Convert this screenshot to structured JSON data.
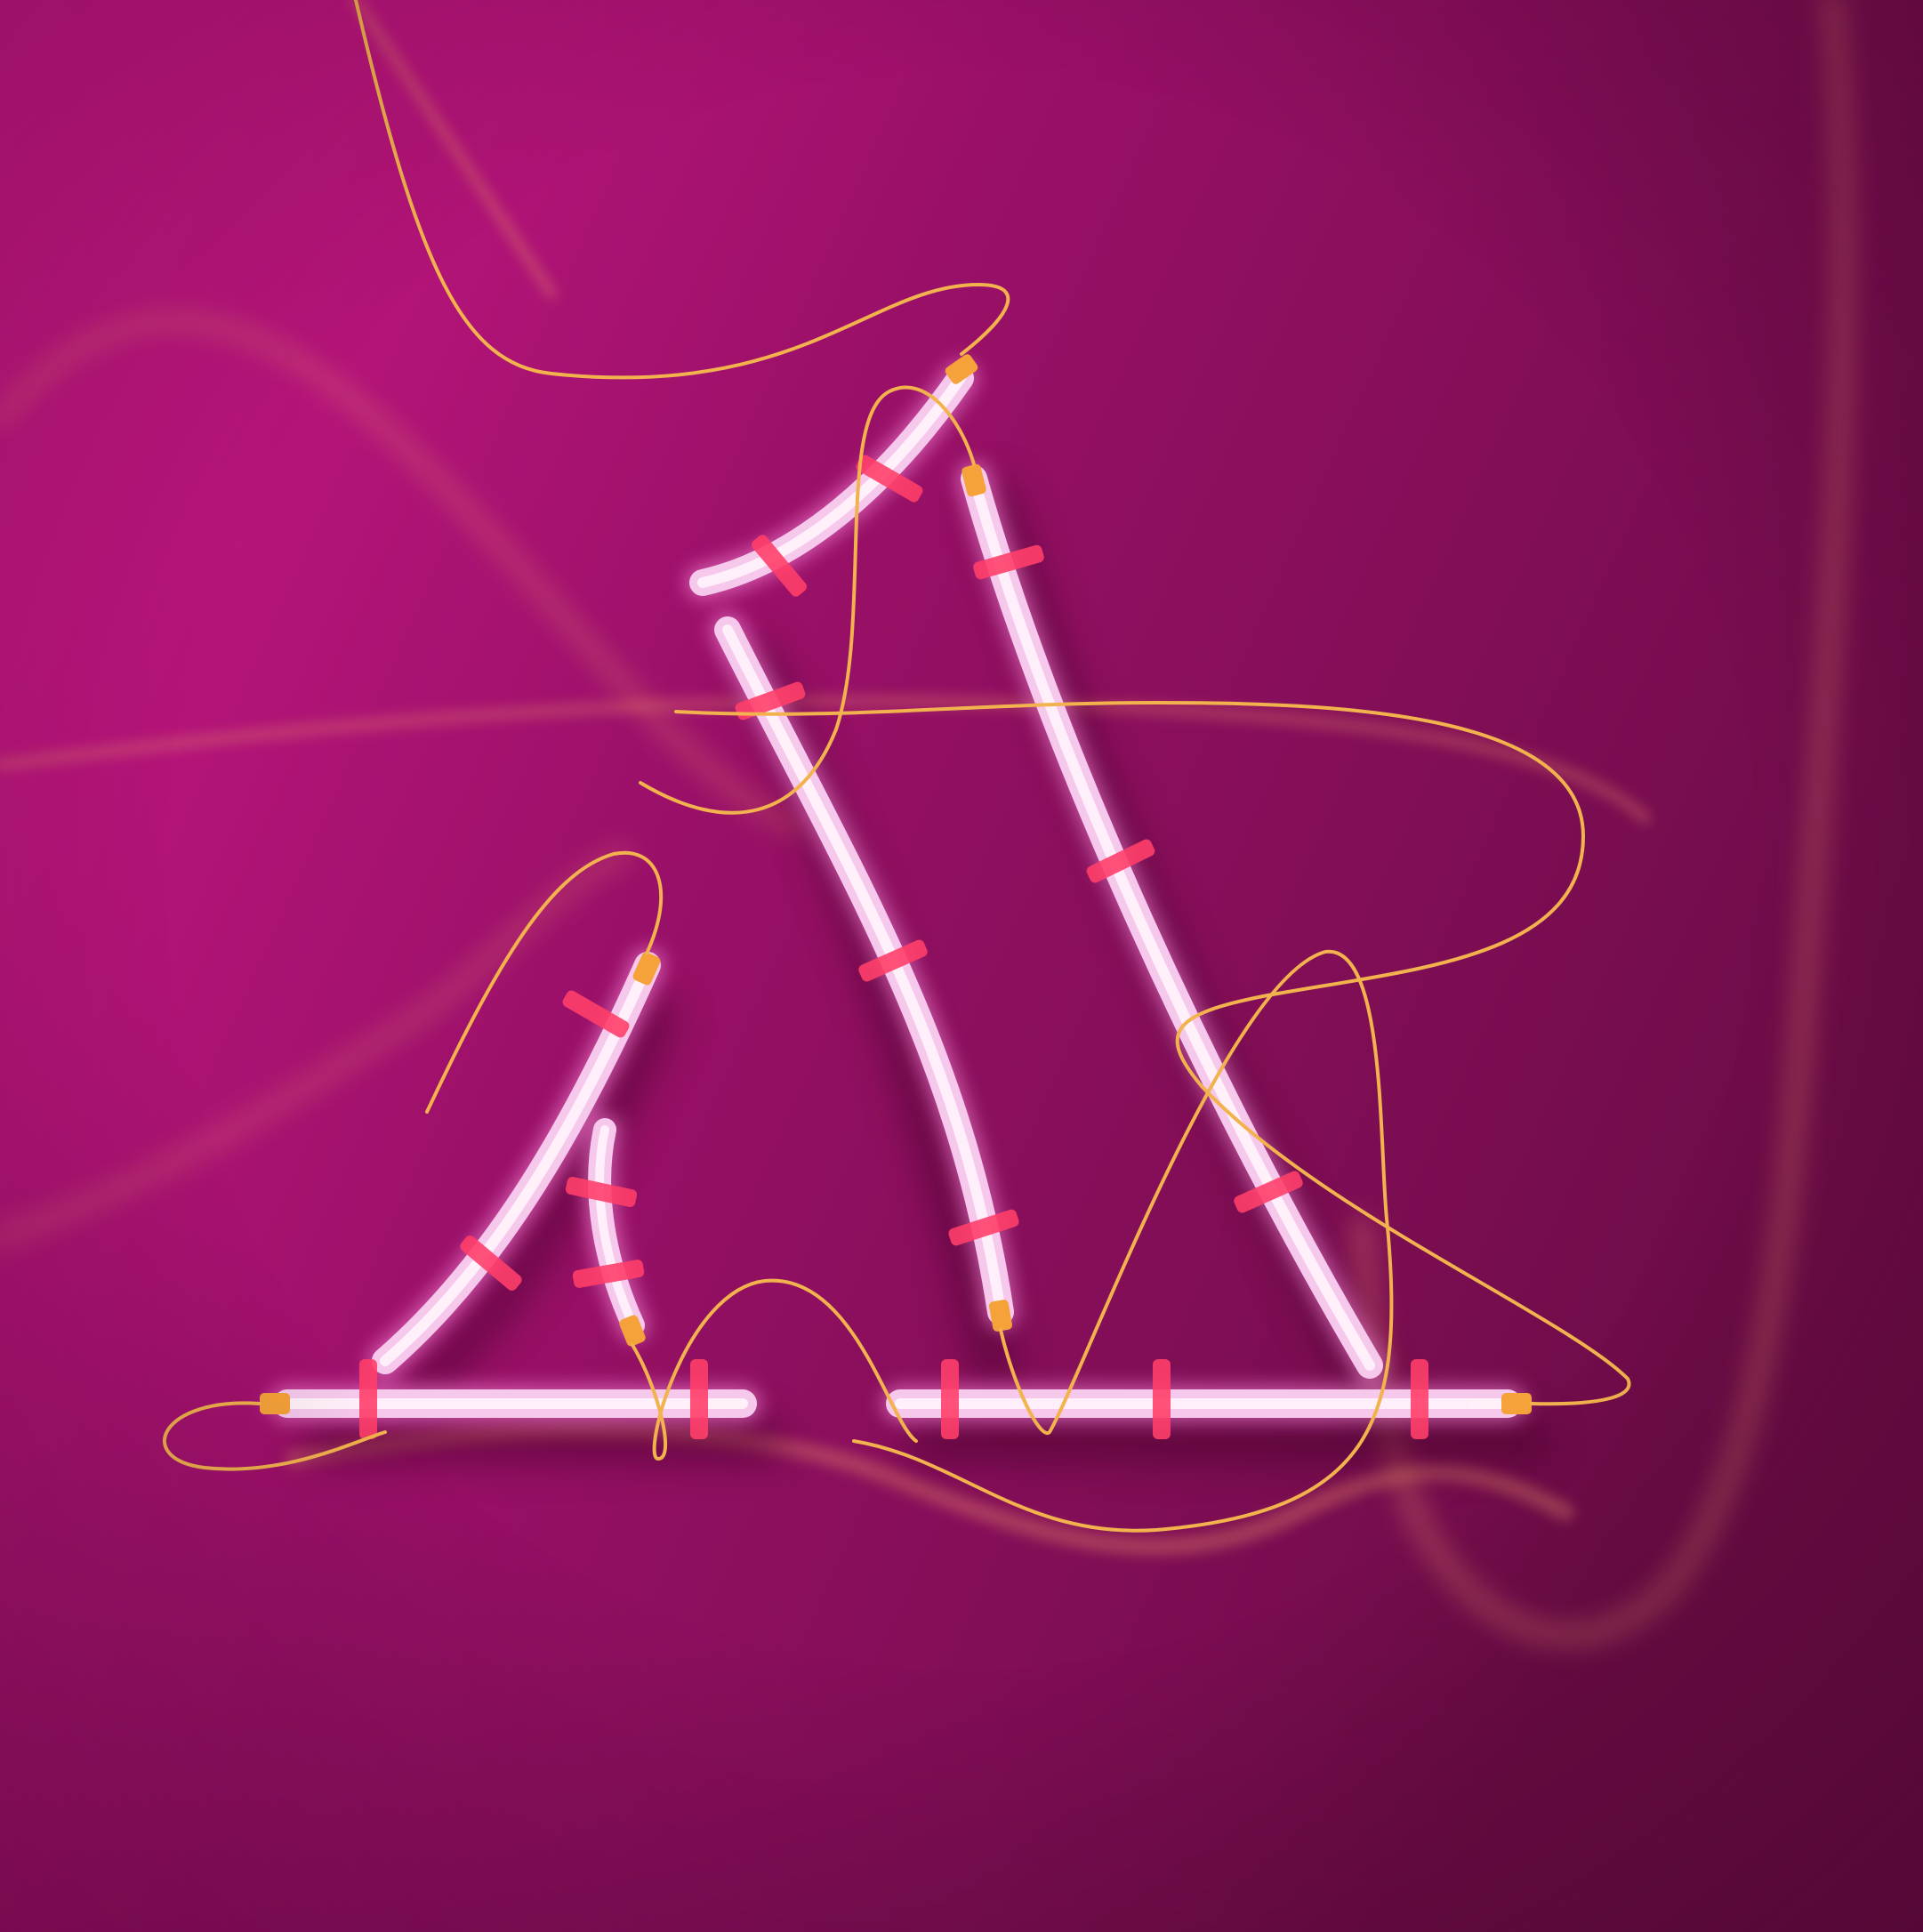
{
  "scene": {
    "subject": "neon-letter-a",
    "colors": {
      "background_light": "#cc1888",
      "background_mid": "#9a1068",
      "background_dark": "#6e0c48",
      "tube_core": "#fff2fb",
      "tube_glow": "#ff8fe0",
      "tube_edge": "#f5c8ec",
      "wire": "#f2b24e",
      "wire_blur": "#f0906a",
      "clip": "#ff3f6a",
      "electrode": "#f6a23a",
      "shadow": "#3f0628"
    }
  }
}
